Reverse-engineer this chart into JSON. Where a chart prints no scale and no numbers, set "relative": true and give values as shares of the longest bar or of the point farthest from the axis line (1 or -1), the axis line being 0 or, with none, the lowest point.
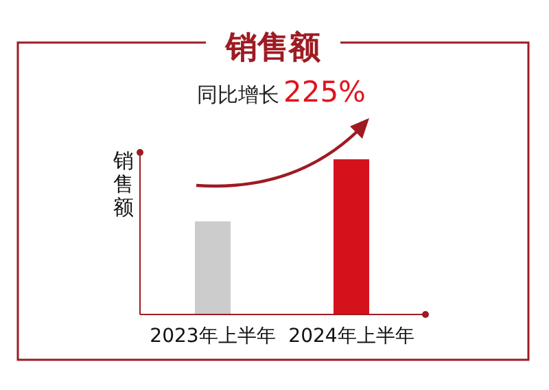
{
  "chart_data": {
    "type": "bar",
    "title": "销售额",
    "ylabel": "销售额",
    "annotations": [
      "同比增长",
      "225%"
    ],
    "categories": [
      "2023年上半年",
      "2024年上半年"
    ],
    "values": [
      0.6,
      1
    ],
    "colors": [
      "#cccccc",
      "#d5121c"
    ],
    "relative": true
  }
}
